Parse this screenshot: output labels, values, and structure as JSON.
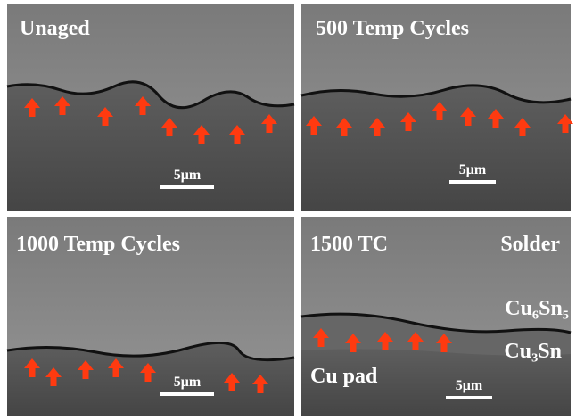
{
  "panels": [
    {
      "label": "Unaged",
      "scale": "5μm"
    },
    {
      "label": "500 Temp Cycles",
      "scale": "5μm"
    },
    {
      "label": "1000 Temp Cycles",
      "scale": "5μm"
    },
    {
      "label": "1500 TC",
      "scale": "5μm"
    }
  ],
  "annotations": {
    "solder": "Solder",
    "cu6sn5": "Cu₆Sn₅",
    "cu3sn": "Cu₃Sn",
    "cu_pad": "Cu pad"
  }
}
